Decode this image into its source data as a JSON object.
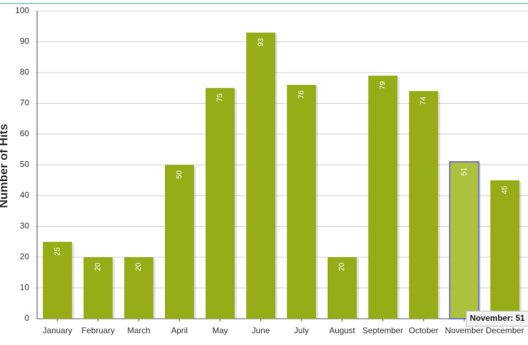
{
  "chart_data": {
    "type": "bar",
    "y_label": "Number of Hits",
    "categories": [
      "January",
      "February",
      "March",
      "April",
      "May",
      "June",
      "July",
      "August",
      "September",
      "October",
      "November",
      "December"
    ],
    "values": [
      25,
      20,
      20,
      50,
      75,
      93,
      76,
      20,
      79,
      74,
      51,
      45
    ],
    "color": "#97ad17",
    "highlight_color": "#abc23e",
    "highlight_stroke": "#7777cc",
    "highlight": "November",
    "tooltip": "November: 51",
    "ylim": [
      0,
      100
    ],
    "yticks": [
      0,
      10,
      20,
      30,
      40,
      50,
      60,
      70,
      80,
      90,
      100
    ],
    "grid": true
  }
}
